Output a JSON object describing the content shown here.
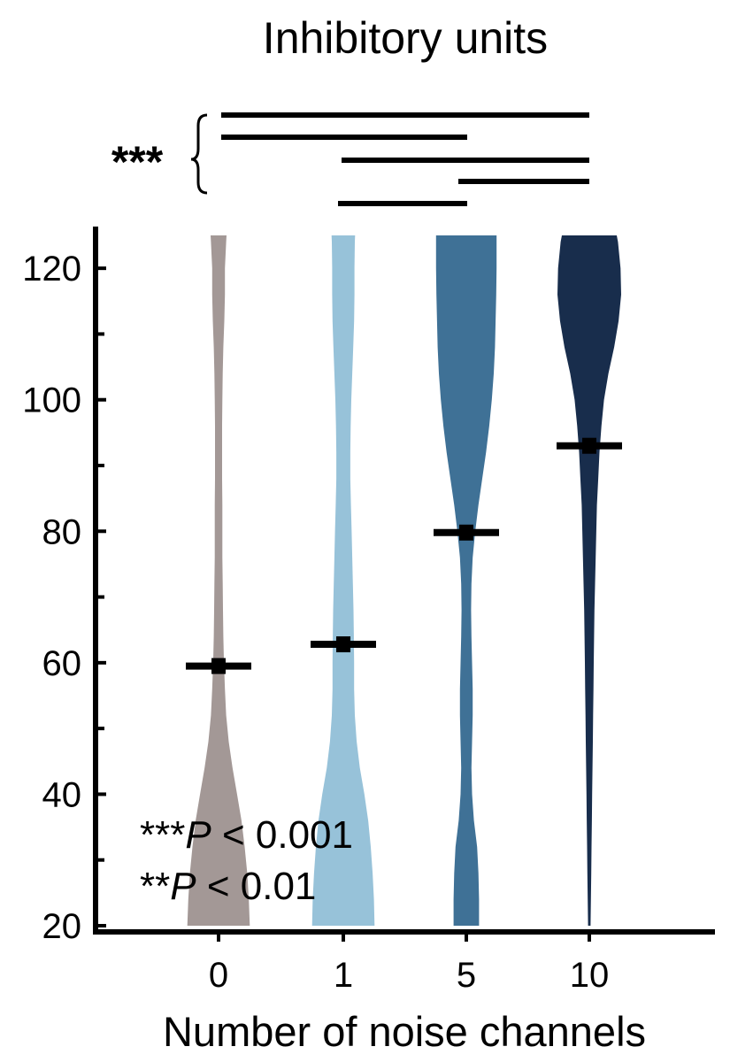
{
  "chart_data": {
    "type": "violin",
    "title": "Inhibitory units",
    "xlabel": "Number of noise channels",
    "ylabel": "",
    "categories": [
      "0",
      "1",
      "5",
      "10"
    ],
    "colors": [
      "#a39896",
      "#97c2d9",
      "#3f7196",
      "#182d4c"
    ],
    "ylim": [
      20,
      125
    ],
    "yticks": [
      20,
      40,
      60,
      80,
      100,
      120
    ],
    "y_minor_ticks": [
      30,
      50,
      70,
      90,
      110
    ],
    "means": [
      59.5,
      62.8,
      79.8,
      93.0
    ],
    "density_profiles": [
      {
        "y": [
          20,
          24,
          28,
          32,
          36,
          40,
          44,
          48,
          52,
          56,
          60,
          64,
          68,
          72,
          76,
          80,
          84,
          88,
          92,
          96,
          100,
          104,
          108,
          112,
          116,
          120,
          124,
          125
        ],
        "width": [
          0.98,
          0.95,
          0.9,
          0.82,
          0.72,
          0.58,
          0.44,
          0.32,
          0.24,
          0.2,
          0.17,
          0.15,
          0.14,
          0.13,
          0.12,
          0.12,
          0.12,
          0.11,
          0.11,
          0.11,
          0.12,
          0.13,
          0.15,
          0.18,
          0.2,
          0.2,
          0.24,
          0.25
        ]
      },
      {
        "y": [
          20,
          24,
          28,
          32,
          36,
          40,
          44,
          48,
          52,
          56,
          60,
          64,
          68,
          72,
          76,
          80,
          84,
          88,
          92,
          96,
          100,
          104,
          108,
          112,
          116,
          120,
          124,
          125
        ],
        "width": [
          0.98,
          0.96,
          0.92,
          0.86,
          0.78,
          0.66,
          0.52,
          0.42,
          0.36,
          0.34,
          0.34,
          0.33,
          0.32,
          0.3,
          0.28,
          0.26,
          0.24,
          0.22,
          0.22,
          0.23,
          0.25,
          0.28,
          0.31,
          0.34,
          0.35,
          0.35,
          0.36,
          0.37
        ]
      },
      {
        "y": [
          20,
          24,
          28,
          32,
          36,
          40,
          44,
          48,
          52,
          56,
          60,
          64,
          68,
          72,
          76,
          80,
          84,
          88,
          92,
          96,
          100,
          104,
          108,
          112,
          116,
          120,
          124,
          125
        ],
        "width": [
          0.4,
          0.4,
          0.38,
          0.34,
          0.24,
          0.18,
          0.16,
          0.18,
          0.2,
          0.2,
          0.18,
          0.16,
          0.15,
          0.16,
          0.2,
          0.28,
          0.38,
          0.5,
          0.62,
          0.72,
          0.8,
          0.86,
          0.9,
          0.92,
          0.94,
          0.95,
          0.95,
          0.95
        ]
      },
      {
        "y": [
          20,
          24,
          28,
          32,
          36,
          40,
          44,
          48,
          52,
          56,
          60,
          64,
          68,
          72,
          76,
          80,
          84,
          88,
          92,
          96,
          100,
          104,
          108,
          112,
          116,
          120,
          124,
          125
        ],
        "width": [
          0.04,
          0.05,
          0.06,
          0.07,
          0.08,
          0.09,
          0.1,
          0.11,
          0.12,
          0.13,
          0.14,
          0.15,
          0.16,
          0.18,
          0.2,
          0.22,
          0.24,
          0.28,
          0.32,
          0.38,
          0.46,
          0.6,
          0.78,
          0.92,
          1.0,
          0.98,
          0.9,
          0.86
        ]
      }
    ],
    "significance": {
      "label": "***",
      "comparisons": [
        [
          "0",
          "10"
        ],
        [
          "0",
          "5"
        ],
        [
          "1",
          "10"
        ],
        [
          "5",
          "10"
        ],
        [
          "1",
          "5"
        ]
      ]
    },
    "annotations": [
      {
        "stars": "***",
        "p": "P",
        "rest": " < 0.001"
      },
      {
        "stars": "**",
        "p": "P",
        "rest": " < 0.01"
      }
    ],
    "grid": false,
    "legend": "none"
  }
}
